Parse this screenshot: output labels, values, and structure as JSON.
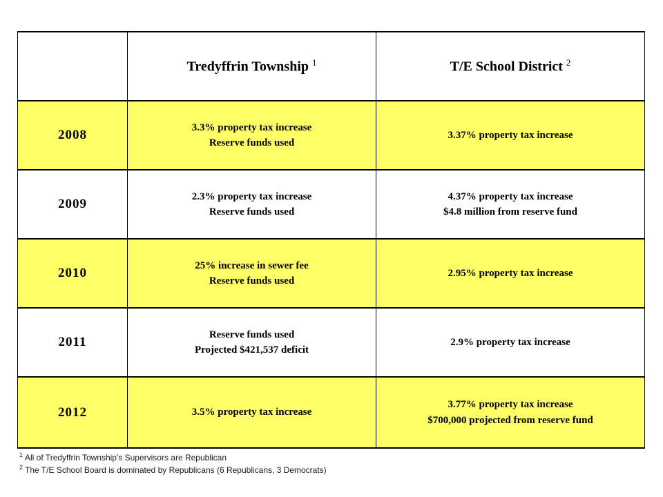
{
  "colors": {
    "highlight_row": "#FFFF66",
    "plain_row": "#FFFFFF",
    "border": "#000000",
    "text": "#000000",
    "page_background": "#FFFFFF"
  },
  "table": {
    "header": {
      "township_label": "Tredyffrin Township",
      "township_sup": "1",
      "district_label": "T/E School District",
      "district_sup": "2"
    },
    "rows": [
      {
        "year": "2008",
        "township": "3.3% property tax increase\nReserve funds used",
        "district": "3.37% property tax increase",
        "highlighted": true
      },
      {
        "year": "2009",
        "township": "2.3% property tax increase\nReserve funds used",
        "district": "4.37% property tax increase\n$4.8 million from reserve fund",
        "highlighted": false
      },
      {
        "year": "2010",
        "township": "25% increase in sewer fee\nReserve funds used",
        "district": "2.95% property tax increase",
        "highlighted": true
      },
      {
        "year": "2011",
        "township": "Reserve funds used\nProjected $421,537 deficit",
        "district": "2.9% property tax increase",
        "highlighted": false
      },
      {
        "year": "2012",
        "township": "3.5% property tax increase",
        "district": "3.77% property tax increase\n$700,000 projected from reserve fund",
        "highlighted": true
      }
    ]
  },
  "footnotes": [
    {
      "marker": "1",
      "text": "All of Tredyffrin Township's Supervisors are Republican"
    },
    {
      "marker": "2",
      "text": "The T/E School Board is dominated by Republicans (6 Republicans, 3 Democrats)"
    }
  ]
}
